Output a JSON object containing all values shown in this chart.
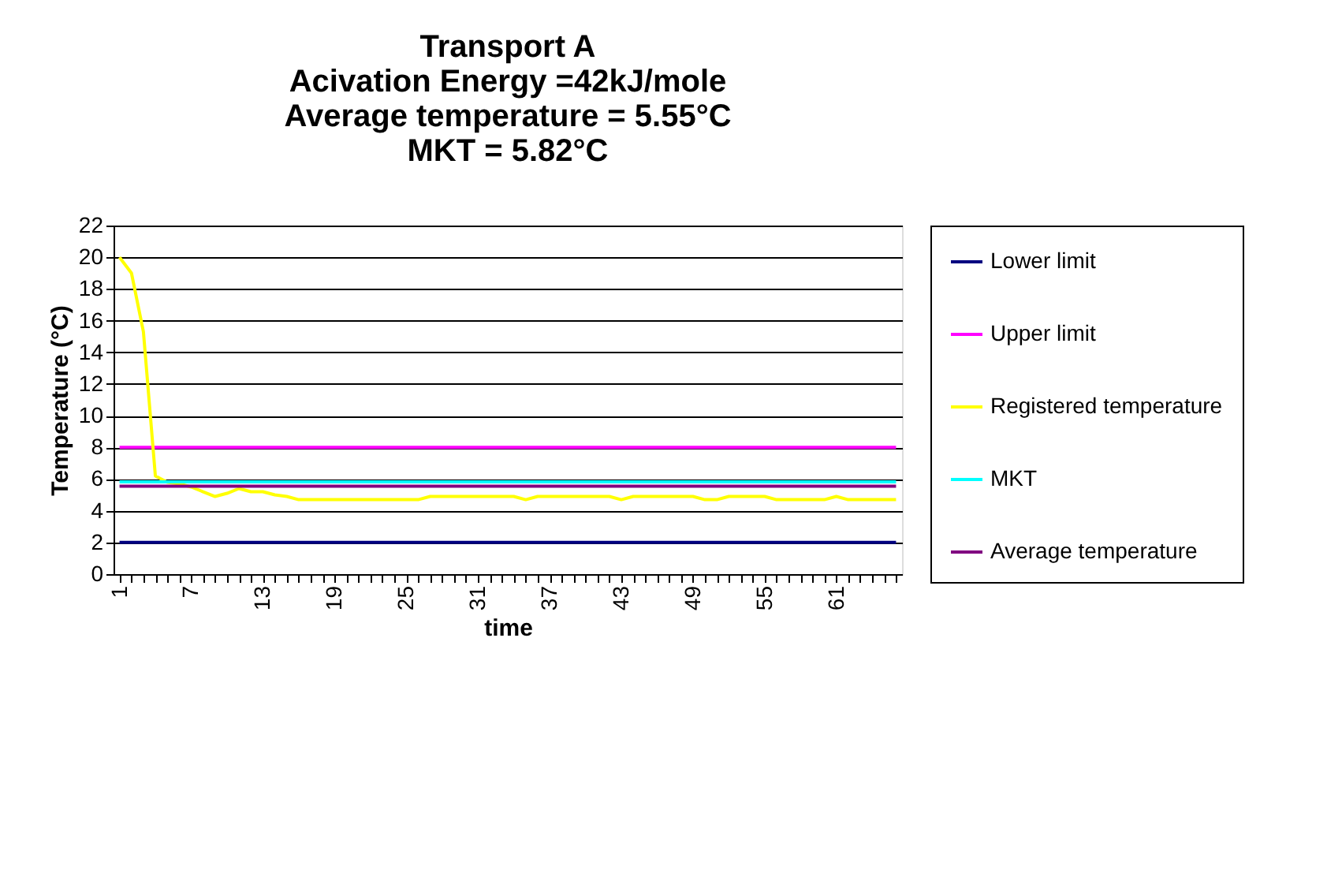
{
  "chart_data": {
    "type": "line",
    "title": "Transport A\nAcivation Energy =42kJ/mole\nAverage temperature = 5.55°C\nMKT = 5.82°C",
    "xlabel": "time",
    "ylabel": "Temperature (°C)",
    "categories": [
      "1",
      null,
      null,
      null,
      null,
      null,
      "7",
      null,
      null,
      null,
      null,
      null,
      "13",
      null,
      null,
      null,
      null,
      null,
      "19",
      null,
      null,
      null,
      null,
      null,
      "25",
      null,
      null,
      null,
      null,
      null,
      "31",
      null,
      null,
      null,
      null,
      null,
      "37",
      null,
      null,
      null,
      null,
      null,
      "43",
      null,
      null,
      null,
      null,
      null,
      "49",
      null,
      null,
      null,
      null,
      null,
      "55",
      null,
      null,
      null,
      null,
      null,
      "61",
      null,
      null,
      null,
      null,
      null
    ],
    "ylim": [
      0,
      22
    ],
    "yticks": [
      0,
      2,
      4,
      6,
      8,
      10,
      12,
      14,
      16,
      18,
      20,
      22
    ],
    "grid": "y",
    "legend": "right",
    "marker": "none",
    "line_style": "solid",
    "series": [
      {
        "name": "Lower limit",
        "color": "#000080",
        "values": [
          2,
          2,
          2,
          2,
          2,
          2,
          2,
          2,
          2,
          2,
          2,
          2,
          2,
          2,
          2,
          2,
          2,
          2,
          2,
          2,
          2,
          2,
          2,
          2,
          2,
          2,
          2,
          2,
          2,
          2,
          2,
          2,
          2,
          2,
          2,
          2,
          2,
          2,
          2,
          2,
          2,
          2,
          2,
          2,
          2,
          2,
          2,
          2,
          2,
          2,
          2,
          2,
          2,
          2,
          2,
          2,
          2,
          2,
          2,
          2,
          2,
          2,
          2,
          2,
          2,
          2
        ]
      },
      {
        "name": "Upper limit",
        "color": "#ff00ff",
        "values": [
          8,
          8,
          8,
          8,
          8,
          8,
          8,
          8,
          8,
          8,
          8,
          8,
          8,
          8,
          8,
          8,
          8,
          8,
          8,
          8,
          8,
          8,
          8,
          8,
          8,
          8,
          8,
          8,
          8,
          8,
          8,
          8,
          8,
          8,
          8,
          8,
          8,
          8,
          8,
          8,
          8,
          8,
          8,
          8,
          8,
          8,
          8,
          8,
          8,
          8,
          8,
          8,
          8,
          8,
          8,
          8,
          8,
          8,
          8,
          8,
          8,
          8,
          8,
          8,
          8,
          8
        ]
      },
      {
        "name": "Registered temperature",
        "color": "#ffff00",
        "values": [
          20,
          19,
          15.3,
          6.2,
          5.8,
          5.7,
          5.5,
          5.2,
          4.9,
          5.1,
          5.4,
          5.2,
          5.2,
          5.0,
          4.9,
          4.7,
          4.7,
          4.7,
          4.7,
          4.7,
          4.7,
          4.7,
          4.7,
          4.7,
          4.7,
          4.7,
          4.9,
          4.9,
          4.9,
          4.9,
          4.9,
          4.9,
          4.9,
          4.9,
          4.7,
          4.9,
          4.9,
          4.9,
          4.9,
          4.9,
          4.9,
          4.9,
          4.7,
          4.9,
          4.9,
          4.9,
          4.9,
          4.9,
          4.9,
          4.7,
          4.7,
          4.9,
          4.9,
          4.9,
          4.9,
          4.7,
          4.7,
          4.7,
          4.7,
          4.7,
          4.9,
          4.7,
          4.7,
          4.7,
          4.7,
          4.7
        ]
      },
      {
        "name": "MKT",
        "color": "#00ffff",
        "values": [
          5.82,
          5.82,
          5.82,
          5.82,
          5.82,
          5.82,
          5.82,
          5.82,
          5.82,
          5.82,
          5.82,
          5.82,
          5.82,
          5.82,
          5.82,
          5.82,
          5.82,
          5.82,
          5.82,
          5.82,
          5.82,
          5.82,
          5.82,
          5.82,
          5.82,
          5.82,
          5.82,
          5.82,
          5.82,
          5.82,
          5.82,
          5.82,
          5.82,
          5.82,
          5.82,
          5.82,
          5.82,
          5.82,
          5.82,
          5.82,
          5.82,
          5.82,
          5.82,
          5.82,
          5.82,
          5.82,
          5.82,
          5.82,
          5.82,
          5.82,
          5.82,
          5.82,
          5.82,
          5.82,
          5.82,
          5.82,
          5.82,
          5.82,
          5.82,
          5.82,
          5.82,
          5.82,
          5.82,
          5.82,
          5.82,
          5.82
        ]
      },
      {
        "name": "Average temperature",
        "color": "#800080",
        "values": [
          5.55,
          5.55,
          5.55,
          5.55,
          5.55,
          5.55,
          5.55,
          5.55,
          5.55,
          5.55,
          5.55,
          5.55,
          5.55,
          5.55,
          5.55,
          5.55,
          5.55,
          5.55,
          5.55,
          5.55,
          5.55,
          5.55,
          5.55,
          5.55,
          5.55,
          5.55,
          5.55,
          5.55,
          5.55,
          5.55,
          5.55,
          5.55,
          5.55,
          5.55,
          5.55,
          5.55,
          5.55,
          5.55,
          5.55,
          5.55,
          5.55,
          5.55,
          5.55,
          5.55,
          5.55,
          5.55,
          5.55,
          5.55,
          5.55,
          5.55,
          5.55,
          5.55,
          5.55,
          5.55,
          5.55,
          5.55,
          5.55,
          5.55,
          5.55,
          5.55,
          5.55,
          5.55,
          5.55,
          5.55,
          5.55,
          5.55
        ]
      }
    ]
  }
}
